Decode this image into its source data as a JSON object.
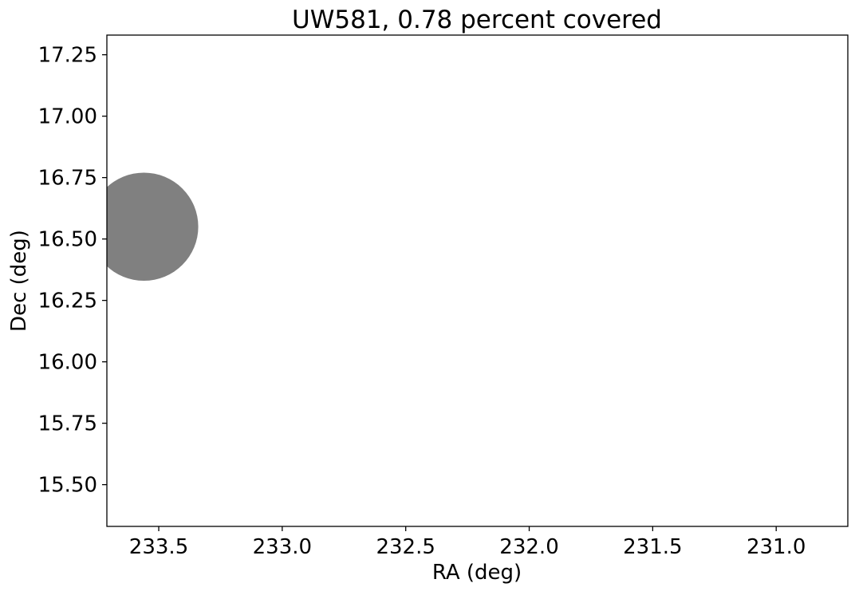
{
  "chart_data": {
    "type": "scatter",
    "title": "UW581, 0.78 percent covered",
    "xlabel": "RA (deg)",
    "ylabel": "Dec (deg)",
    "xlim": [
      233.71,
      230.71
    ],
    "ylim": [
      15.33,
      17.33
    ],
    "x_inverted": true,
    "xticks": [
      233.5,
      233.0,
      232.5,
      232.0,
      231.5,
      231.0
    ],
    "xtick_labels": [
      "233.5",
      "233.0",
      "232.5",
      "232.0",
      "231.5",
      "231.0"
    ],
    "yticks": [
      15.5,
      15.75,
      16.0,
      16.25,
      16.5,
      16.75,
      17.0,
      17.25
    ],
    "ytick_labels": [
      "15.50",
      "15.75",
      "16.00",
      "16.25",
      "16.50",
      "16.75",
      "17.00",
      "17.25"
    ],
    "grid": false,
    "shapes": [
      {
        "kind": "circle",
        "center_ra": 233.56,
        "center_dec": 16.55,
        "radius_deg": 0.22,
        "color": "#808080"
      }
    ],
    "colors": {
      "background": "#ffffff",
      "axes": "#000000",
      "footprint": "#808080"
    }
  }
}
